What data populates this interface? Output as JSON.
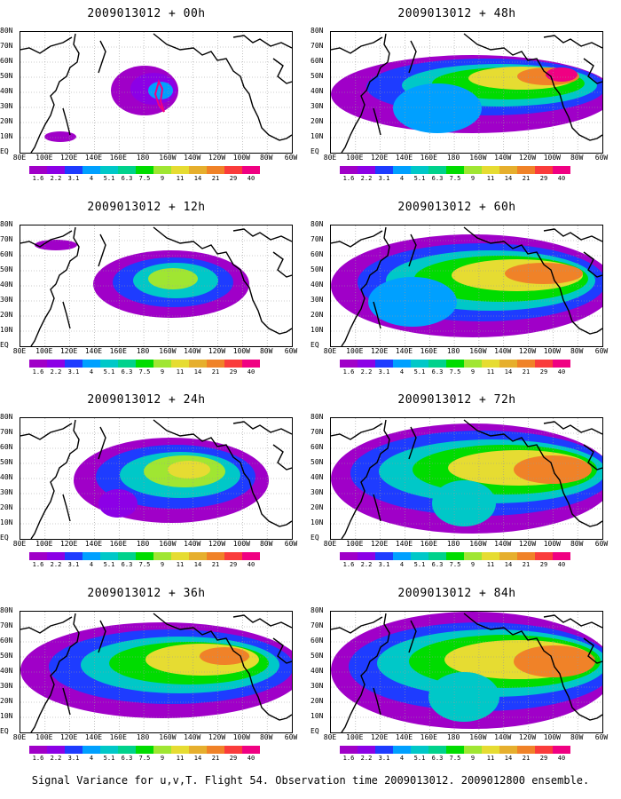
{
  "panels": [
    {
      "title": "2009013012 + 00h",
      "level": 0
    },
    {
      "title": "2009013012 + 48h",
      "level": 4
    },
    {
      "title": "2009013012 + 12h",
      "level": 1
    },
    {
      "title": "2009013012 + 60h",
      "level": 5
    },
    {
      "title": "2009013012 + 24h",
      "level": 2
    },
    {
      "title": "2009013012 + 72h",
      "level": 6
    },
    {
      "title": "2009013012 + 36h",
      "level": 3
    },
    {
      "title": "2009013012 + 84h",
      "level": 7
    }
  ],
  "lat_labels": [
    "80N",
    "70N",
    "60N",
    "50N",
    "40N",
    "30N",
    "20N",
    "10N",
    "EQ"
  ],
  "lon_labels": [
    "80E",
    "100E",
    "120E",
    "140E",
    "160E",
    "180",
    "160W",
    "140W",
    "120W",
    "100W",
    "80W",
    "60W"
  ],
  "colorbar": {
    "labels": [
      "1.6",
      "2.2",
      "3.1",
      "4",
      "5.1",
      "6.3",
      "7.5",
      "9",
      "11",
      "14",
      "21",
      "29",
      "40"
    ],
    "colors": [
      "#a000c8",
      "#8c00e6",
      "#1e3cff",
      "#00a0ff",
      "#00c8c8",
      "#00d28c",
      "#00dc00",
      "#a0e632",
      "#e6dc32",
      "#e6af2d",
      "#f08228",
      "#fa3c3c",
      "#f00082"
    ]
  },
  "caption": "Signal Variance for u,v,T. Flight 54. Observation time 2009013012. 2009012800 ensemble."
}
